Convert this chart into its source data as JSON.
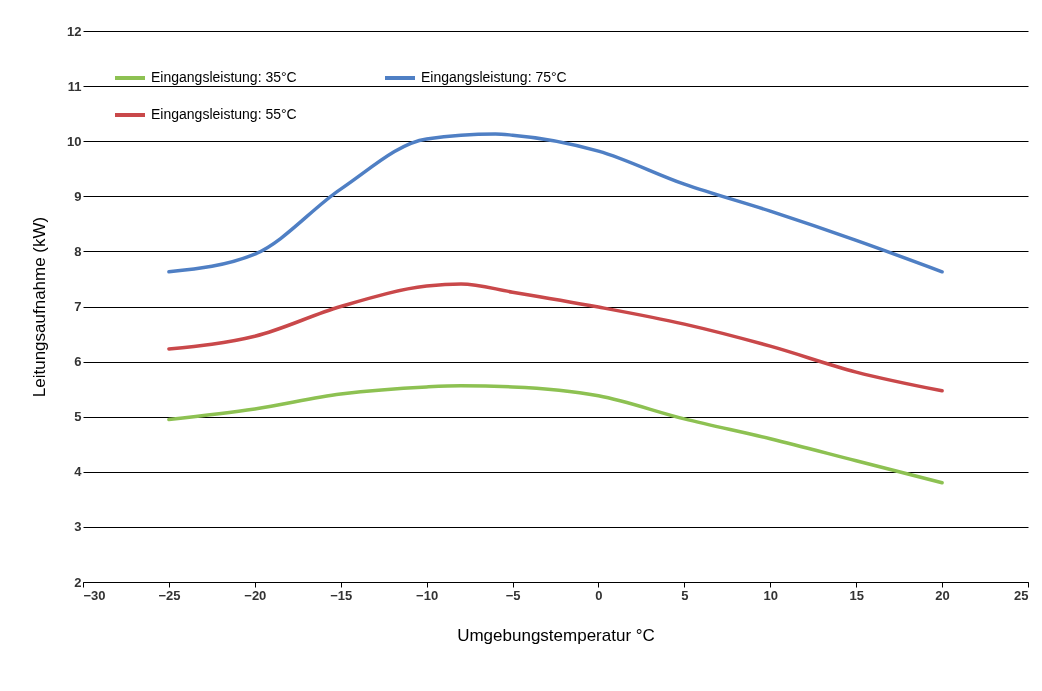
{
  "chart_data": {
    "type": "line",
    "xlabel": "Umgebungstemperatur °C",
    "ylabel": "Leitungsaufnahme (kW)",
    "xlim": [
      -30,
      25
    ],
    "xticks": [
      -30,
      -25,
      -20,
      -15,
      -10,
      -5,
      0,
      5,
      10,
      15,
      20,
      25
    ],
    "ylim": [
      2,
      12
    ],
    "yticks": [
      2,
      3,
      4,
      5,
      6,
      7,
      8,
      9,
      10,
      11,
      12
    ],
    "grid": "y",
    "legend": "top left",
    "marker": "none",
    "line_style": "solid",
    "series": [
      {
        "name": "Eingangsleistung: 35°C",
        "color": "#8dc152",
        "x": [
          -25,
          -20,
          -15,
          -10,
          -8,
          -5,
          0,
          5,
          10,
          15,
          20
        ],
        "values": [
          4.95,
          5.14,
          5.41,
          5.54,
          5.56,
          5.54,
          5.38,
          4.96,
          4.6,
          4.2,
          3.8
        ]
      },
      {
        "name": "Eingangsleistung: 55°C",
        "color": "#c9484a",
        "x": [
          -25,
          -20,
          -15,
          -10,
          -8,
          -5,
          0,
          5,
          10,
          15,
          20
        ],
        "values": [
          6.23,
          6.46,
          7.0,
          7.37,
          7.41,
          7.26,
          6.99,
          6.68,
          6.28,
          5.81,
          5.47
        ]
      },
      {
        "name": "Eingangsleistung: 75°C",
        "color": "#4f7fc4",
        "x": [
          -25,
          -20,
          -15,
          -10,
          -6,
          -5,
          0,
          5,
          10,
          15,
          20
        ],
        "values": [
          7.63,
          7.95,
          9.13,
          10.04,
          10.13,
          10.11,
          9.82,
          9.22,
          8.73,
          8.2,
          7.63
        ]
      }
    ]
  }
}
